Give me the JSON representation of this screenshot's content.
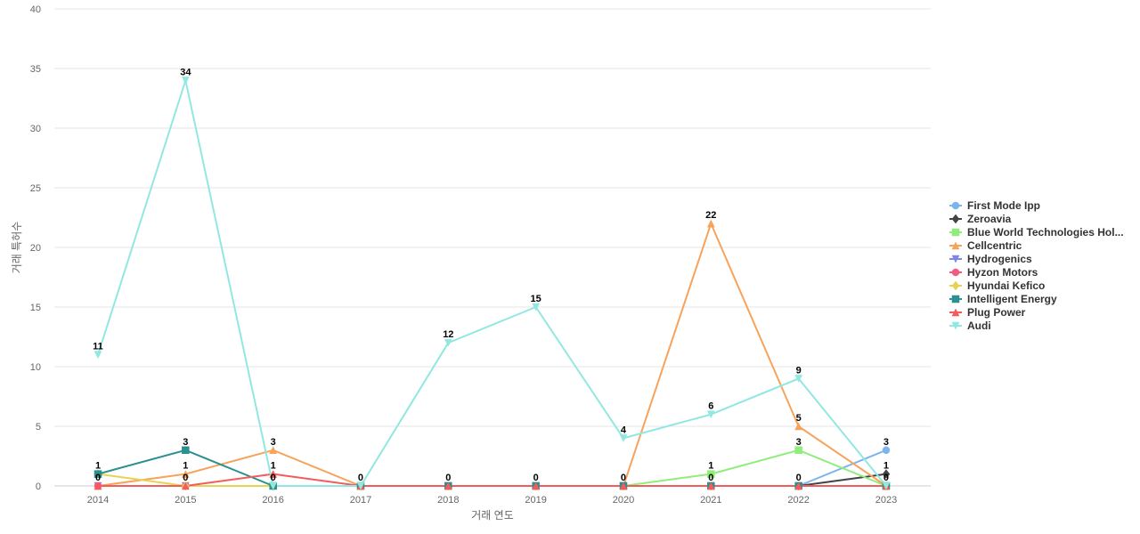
{
  "chart_data": {
    "type": "line",
    "title": "",
    "xlabel": "거래 연도",
    "ylabel": "거래 특허수",
    "x": [
      "2014",
      "2015",
      "2016",
      "2017",
      "2018",
      "2019",
      "2020",
      "2021",
      "2022",
      "2023"
    ],
    "ylim": [
      0,
      40
    ],
    "yticks": [
      0,
      5,
      10,
      15,
      20,
      25,
      30,
      35,
      40
    ],
    "grid": true,
    "legend_position": "right",
    "series": [
      {
        "name": "First Mode Ipp",
        "color": "#7cb5ec",
        "marker": "circle",
        "values": [
          null,
          null,
          null,
          null,
          null,
          null,
          null,
          null,
          0,
          3
        ]
      },
      {
        "name": "Zeroavia",
        "color": "#434348",
        "marker": "diamond",
        "values": [
          null,
          null,
          null,
          null,
          null,
          null,
          null,
          null,
          0,
          1
        ]
      },
      {
        "name": "Blue World Technologies Hol...",
        "color": "#90ed7d",
        "marker": "square",
        "values": [
          null,
          null,
          null,
          null,
          null,
          null,
          0,
          1,
          3,
          0
        ]
      },
      {
        "name": "Cellcentric",
        "color": "#f7a35c",
        "marker": "triangle",
        "values": [
          0,
          1,
          3,
          0,
          0,
          0,
          0,
          22,
          5,
          0
        ]
      },
      {
        "name": "Hydrogenics",
        "color": "#8085e9",
        "marker": "triangle-down",
        "values": [
          0,
          0,
          0,
          0,
          0,
          0,
          0,
          0,
          0,
          0
        ]
      },
      {
        "name": "Hyzon Motors",
        "color": "#f15c80",
        "marker": "circle",
        "values": [
          0,
          0,
          0,
          0,
          0,
          0,
          0,
          0,
          0,
          0
        ]
      },
      {
        "name": "Hyundai Kefico",
        "color": "#e4d354",
        "marker": "diamond",
        "values": [
          1,
          0,
          0,
          0,
          0,
          0,
          0,
          0,
          0,
          0
        ]
      },
      {
        "name": "Intelligent Energy",
        "color": "#2b908f",
        "marker": "square",
        "values": [
          1,
          3,
          0,
          0,
          0,
          0,
          0,
          0,
          0,
          0
        ]
      },
      {
        "name": "Plug Power",
        "color": "#f45b5b",
        "marker": "triangle",
        "values": [
          0,
          0,
          1,
          0,
          0,
          0,
          0,
          0,
          0,
          0
        ]
      },
      {
        "name": "Audi",
        "color": "#91e8e1",
        "marker": "triangle-down",
        "values": [
          11,
          34,
          0,
          0,
          12,
          15,
          4,
          6,
          9,
          0
        ]
      }
    ],
    "data_labels": [
      {
        "x": "2014",
        "text": "11",
        "value": 11
      },
      {
        "x": "2014",
        "text": "1",
        "value": 1
      },
      {
        "x": "2014",
        "text": "0",
        "value": 0
      },
      {
        "x": "2015",
        "text": "34",
        "value": 34
      },
      {
        "x": "2015",
        "text": "3",
        "value": 3
      },
      {
        "x": "2015",
        "text": "1",
        "value": 1
      },
      {
        "x": "2015",
        "text": "0",
        "value": 0
      },
      {
        "x": "2016",
        "text": "3",
        "value": 3
      },
      {
        "x": "2016",
        "text": "1",
        "value": 1
      },
      {
        "x": "2016",
        "text": "0",
        "value": 0
      },
      {
        "x": "2017",
        "text": "0",
        "value": 0
      },
      {
        "x": "2018",
        "text": "12",
        "value": 12
      },
      {
        "x": "2018",
        "text": "0",
        "value": 0
      },
      {
        "x": "2019",
        "text": "15",
        "value": 15
      },
      {
        "x": "2019",
        "text": "0",
        "value": 0
      },
      {
        "x": "2020",
        "text": "4",
        "value": 4
      },
      {
        "x": "2020",
        "text": "0",
        "value": 0
      },
      {
        "x": "2021",
        "text": "22",
        "value": 22
      },
      {
        "x": "2021",
        "text": "6",
        "value": 6
      },
      {
        "x": "2021",
        "text": "1",
        "value": 1
      },
      {
        "x": "2021",
        "text": "0",
        "value": 0
      },
      {
        "x": "2022",
        "text": "9",
        "value": 9
      },
      {
        "x": "2022",
        "text": "5",
        "value": 5
      },
      {
        "x": "2022",
        "text": "3",
        "value": 3
      },
      {
        "x": "2022",
        "text": "0",
        "value": 0
      },
      {
        "x": "2023",
        "text": "3",
        "value": 3
      },
      {
        "x": "2023",
        "text": "1",
        "value": 1
      },
      {
        "x": "2023",
        "text": "0",
        "value": 0
      }
    ]
  }
}
